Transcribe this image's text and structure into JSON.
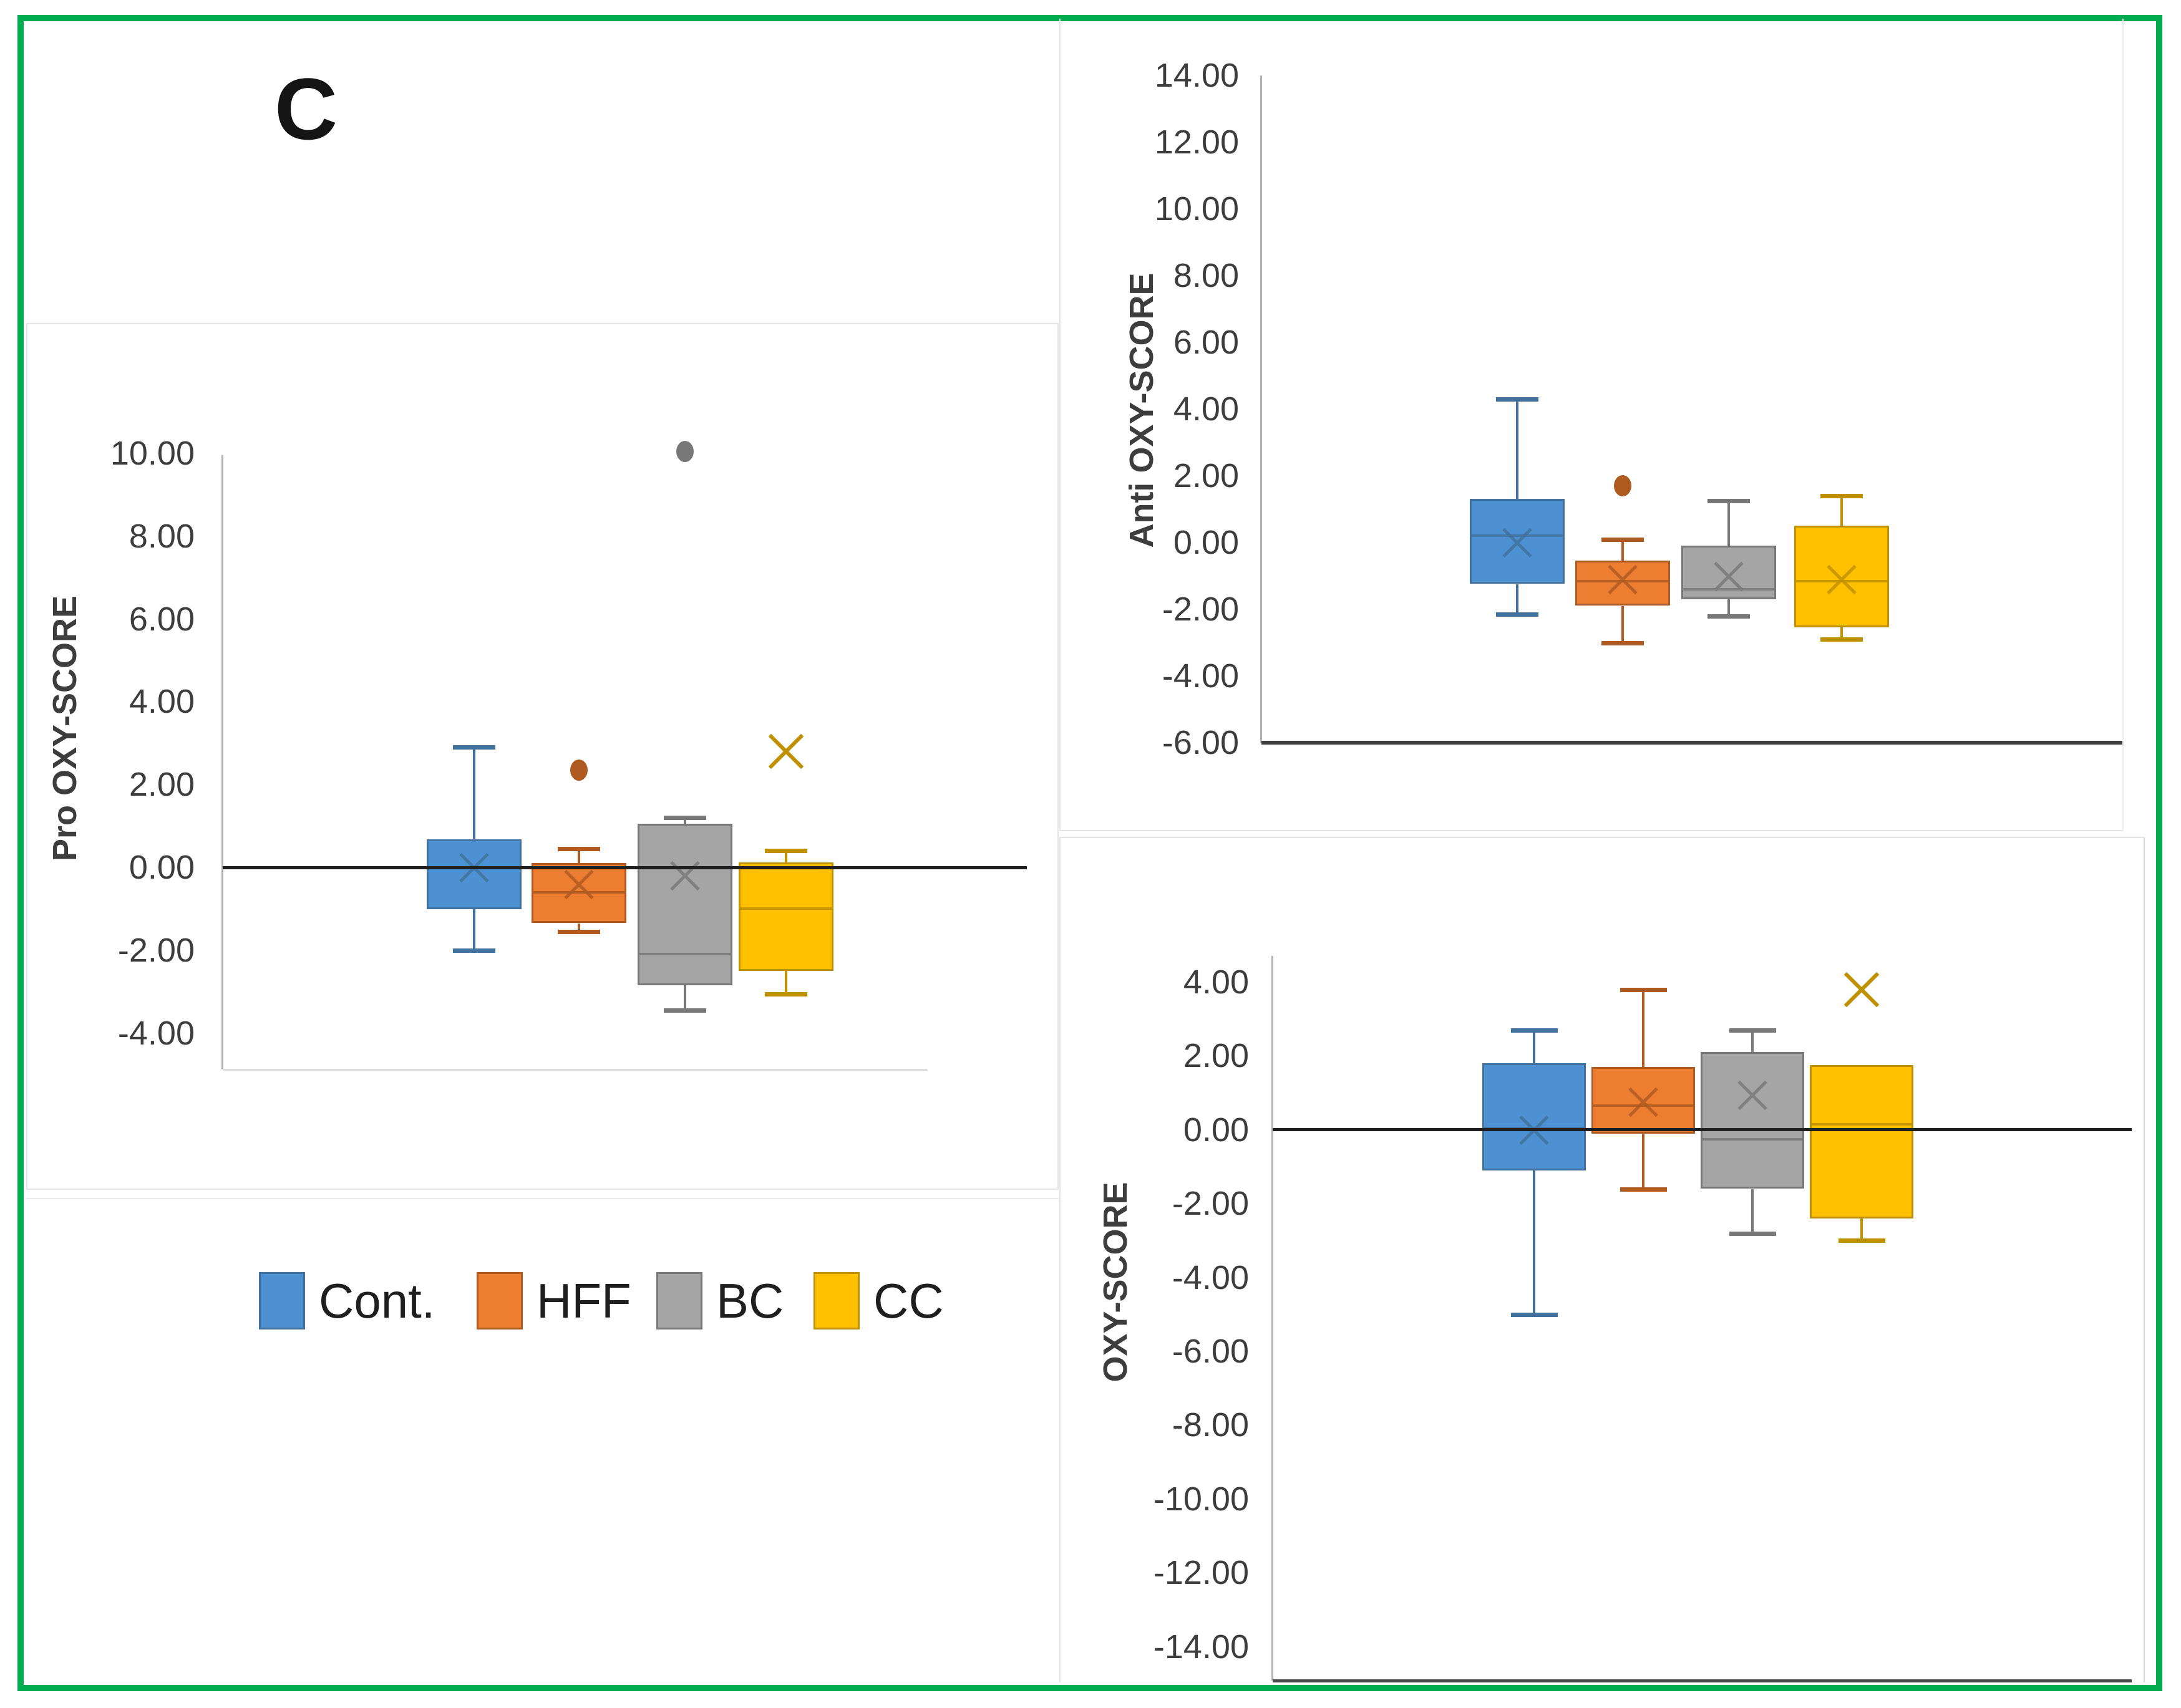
{
  "figure": {
    "panel_label": "C",
    "border_color": "#00AC4F",
    "background": "#FFFFFF"
  },
  "legend": {
    "items": [
      {
        "label": "Cont.",
        "color": "#4D91D2",
        "border": "#41719C"
      },
      {
        "label": "HFF",
        "color": "#ED7D31",
        "border": "#AE5A21"
      },
      {
        "label": "BC",
        "color": "#A5A5A5",
        "border": "#787878"
      },
      {
        "label": "CC",
        "color": "#FFC000",
        "border": "#BF9000"
      }
    ]
  },
  "chart_data": [
    {
      "id": "pro",
      "type": "box",
      "title": "",
      "ylabel": "Pro OXY-SCORE",
      "ymax": 10,
      "ymin": -4,
      "ystep": 2,
      "grid": false,
      "legend_position": "below-left-panel",
      "tick_labels": [
        "10.00",
        "8.00",
        "6.00",
        "4.00",
        "2.00",
        "0.00",
        "-2.00",
        "-4.00"
      ],
      "categories": [
        "Cont.",
        "HFF",
        "BC",
        "CC"
      ],
      "series": [
        {
          "name": "Cont.",
          "low": -2.0,
          "q1": -1.0,
          "median": 0.0,
          "q3": 0.68,
          "high": 2.9,
          "mean": 0.0,
          "outliers": []
        },
        {
          "name": "HFF",
          "low": -1.55,
          "q1": -1.35,
          "median": -0.6,
          "q3": 0.1,
          "high": 0.45,
          "mean": -0.4,
          "outliers": [
            {
              "value": 2.35,
              "marker": "dot"
            }
          ]
        },
        {
          "name": "BC",
          "low": -3.45,
          "q1": -2.85,
          "median": -2.1,
          "q3": 1.05,
          "high": 1.2,
          "mean": -0.2,
          "outliers": [
            {
              "value": 10.05,
              "marker": "dot"
            }
          ]
        },
        {
          "name": "CC",
          "low": -3.05,
          "q1": -2.5,
          "median": -1.0,
          "q3": 0.12,
          "high": 0.4,
          "mean": null,
          "outliers": [
            {
              "value": 2.8,
              "marker": "x"
            }
          ]
        }
      ]
    },
    {
      "id": "anti",
      "type": "box",
      "title": "",
      "ylabel": "Anti OXY-SCORE",
      "ymax": 14,
      "ymin": -6,
      "ystep": 2,
      "grid": false,
      "tick_labels": [
        "14.00",
        "12.00",
        "10.00",
        "8.00",
        "6.00",
        "4.00",
        "2.00",
        "0.00",
        "-2.00",
        "-4.00",
        "-6.00"
      ],
      "categories": [
        "Cont.",
        "HFF",
        "BC",
        "CC"
      ],
      "series": [
        {
          "name": "Cont.",
          "low": -2.15,
          "q1": -1.25,
          "median": 0.2,
          "q3": 1.3,
          "high": 4.3,
          "mean": 0.0,
          "outliers": []
        },
        {
          "name": "HFF",
          "low": -3.0,
          "q1": -1.9,
          "median": -1.15,
          "q3": -0.55,
          "high": 0.1,
          "mean": -1.1,
          "outliers": [
            {
              "value": 1.7,
              "marker": "dot"
            }
          ]
        },
        {
          "name": "BC",
          "low": -2.2,
          "q1": -1.7,
          "median": -1.4,
          "q3": -0.1,
          "high": 1.25,
          "mean": -1.0,
          "outliers": []
        },
        {
          "name": "CC",
          "low": -2.9,
          "q1": -2.55,
          "median": -1.15,
          "q3": 0.5,
          "high": 1.4,
          "mean": -1.1,
          "outliers": []
        }
      ]
    },
    {
      "id": "oxy",
      "type": "box",
      "title": "",
      "ylabel": "OXY-SCORE",
      "ymax": 4,
      "ymin": -14,
      "ystep": 2,
      "grid": false,
      "tick_labels": [
        "4.00",
        "2.00",
        "0.00",
        "-2.00",
        "-4.00",
        "-6.00",
        "-8.00",
        "-10.00",
        "-12.00",
        "-14.00"
      ],
      "categories": [
        "Cont.",
        "HFF",
        "BC",
        "CC"
      ],
      "series": [
        {
          "name": "Cont.",
          "low": -5.0,
          "q1": -1.1,
          "median": 0.05,
          "q3": 1.8,
          "high": 2.7,
          "mean": 0.0,
          "outliers": []
        },
        {
          "name": "HFF",
          "low": -1.6,
          "q1": -0.1,
          "median": 0.65,
          "q3": 1.7,
          "high": 3.8,
          "mean": 0.75,
          "outliers": []
        },
        {
          "name": "BC",
          "low": -2.8,
          "q1": -1.6,
          "median": -0.25,
          "q3": 2.1,
          "high": 2.7,
          "mean": 0.95,
          "outliers": []
        },
        {
          "name": "CC",
          "low": -3.0,
          "q1": -2.4,
          "median": 0.15,
          "q3": 1.75,
          "high": null,
          "mean": null,
          "outliers": [
            {
              "value": 3.8,
              "marker": "x"
            }
          ]
        }
      ]
    }
  ]
}
